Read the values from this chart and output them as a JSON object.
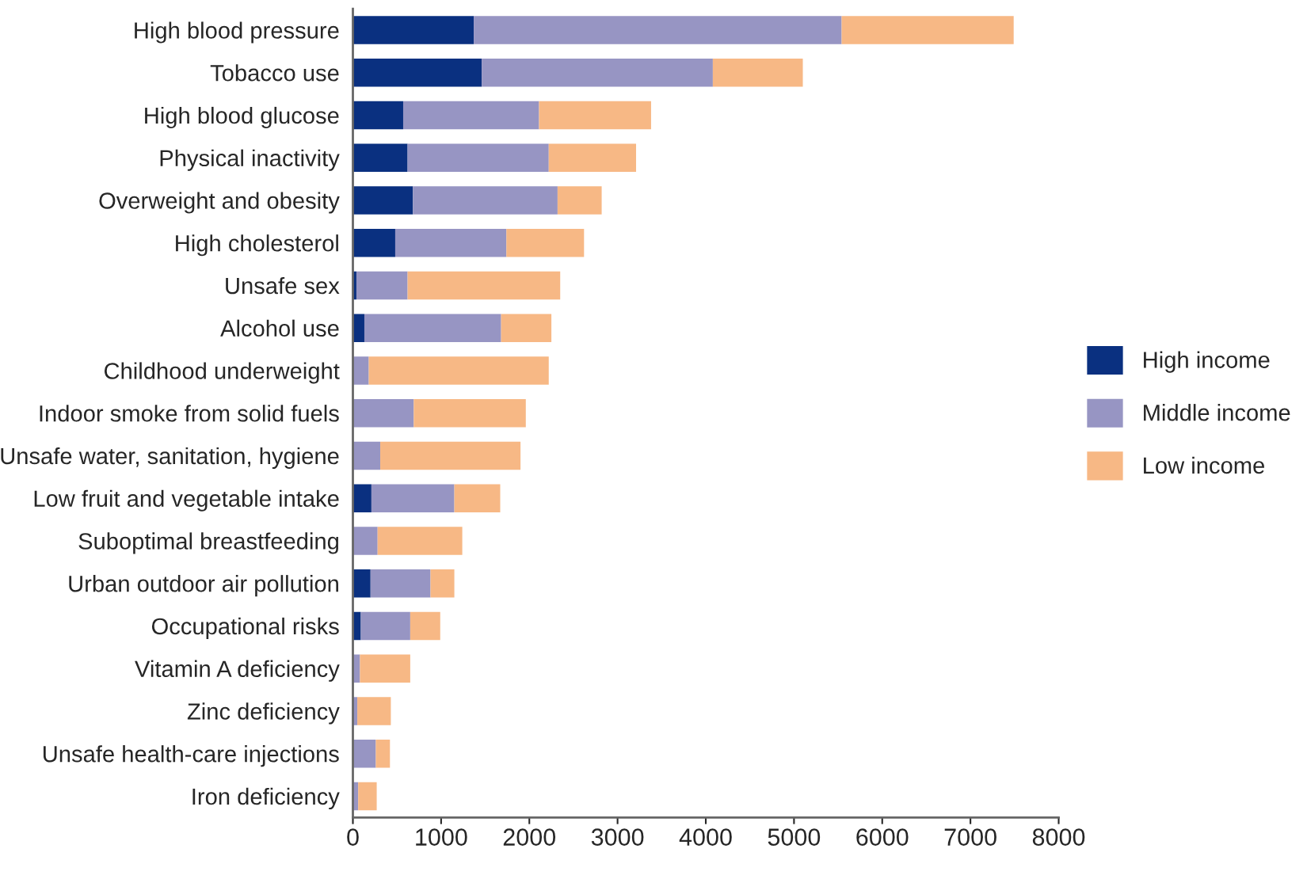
{
  "chart_data": {
    "type": "bar",
    "orientation": "horizontal",
    "stacked": true,
    "categories": [
      "High blood pressure",
      "Tobacco use",
      "High blood glucose",
      "Physical inactivity",
      "Overweight and obesity",
      "High cholesterol",
      "Unsafe sex",
      "Alcohol use",
      "Childhood underweight",
      "Indoor smoke from solid fuels",
      "Unsafe water, sanitation, hygiene",
      "Low fruit and vegetable intake",
      "Suboptimal breastfeeding",
      "Urban outdoor air pollution",
      "Occupational risks",
      "Vitamin A deficiency",
      "Zinc deficiency",
      "Unsafe health-care injections",
      "Iron deficiency"
    ],
    "series": [
      {
        "name": "High income",
        "color": "#0a3080",
        "values": [
          1370,
          1460,
          570,
          620,
          680,
          480,
          40,
          130,
          0,
          0,
          0,
          210,
          0,
          200,
          90,
          0,
          0,
          0,
          0
        ]
      },
      {
        "name": "Middle income",
        "color": "#9795c3",
        "values": [
          4170,
          2620,
          1540,
          1600,
          1640,
          1260,
          580,
          1550,
          180,
          690,
          310,
          940,
          280,
          680,
          560,
          80,
          50,
          260,
          60
        ]
      },
      {
        "name": "Low income",
        "color": "#f7b885",
        "values": [
          1950,
          1020,
          1270,
          990,
          500,
          880,
          1730,
          570,
          2040,
          1270,
          1590,
          520,
          960,
          270,
          340,
          570,
          380,
          160,
          210
        ]
      }
    ],
    "xlim": [
      0,
      8000
    ],
    "xticks": [
      0,
      1000,
      2000,
      3000,
      4000,
      5000,
      6000,
      7000,
      8000
    ],
    "grid": false,
    "legend": "right"
  }
}
